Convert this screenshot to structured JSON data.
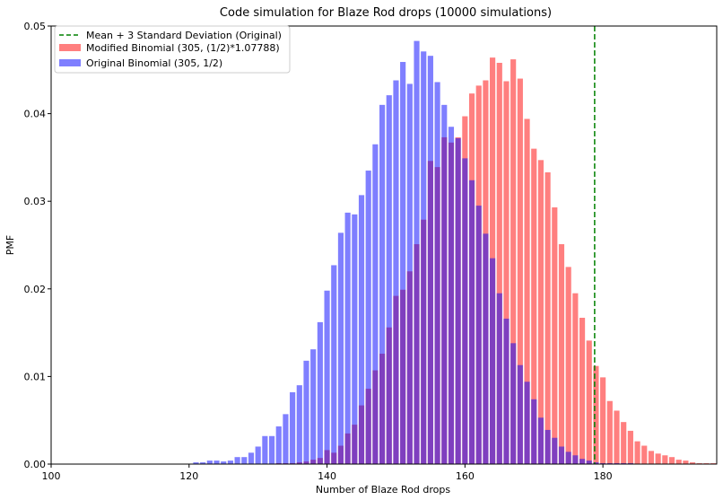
{
  "chart_data": {
    "type": "bar",
    "title": "Code simulation for Blaze Rod drops (10000 simulations)",
    "xlabel": "Number of Blaze Rod drops",
    "ylabel": "PMF",
    "xlim": [
      100,
      196.5
    ],
    "ylim": [
      0,
      0.05
    ],
    "xticks": [
      100,
      120,
      140,
      160,
      180
    ],
    "yticks": [
      0.0,
      0.01,
      0.02,
      0.03,
      0.04,
      0.05
    ],
    "xtick_labels": [
      "100",
      "120",
      "140",
      "160",
      "180"
    ],
    "ytick_labels": [
      "0.00",
      "0.01",
      "0.02",
      "0.03",
      "0.04",
      "0.05"
    ],
    "grid": false,
    "legend_position": "top-left",
    "vline": {
      "name": "Mean + 3 Standard Deviation (Original)",
      "x": 178.8,
      "color": "#008000",
      "style": "dashed"
    },
    "series": [
      {
        "name": "Modified Binomial (305, (1/2)*1.07788)",
        "color": "#ff0000",
        "opacity": 0.5,
        "x": [
          133,
          134,
          135,
          136,
          137,
          138,
          139,
          140,
          141,
          142,
          143,
          144,
          145,
          146,
          147,
          148,
          149,
          150,
          151,
          152,
          153,
          154,
          155,
          156,
          157,
          158,
          159,
          160,
          161,
          162,
          163,
          164,
          165,
          166,
          167,
          168,
          169,
          170,
          171,
          172,
          173,
          174,
          175,
          176,
          177,
          178,
          179,
          180,
          181,
          182,
          183,
          184,
          185,
          186,
          187,
          188,
          189,
          190,
          191,
          192,
          193,
          194,
          195,
          196
        ],
        "values": [
          0.0001,
          0.0001,
          0.0001,
          0.0002,
          0.0003,
          0.0005,
          0.0007,
          0.0016,
          0.0013,
          0.0021,
          0.0035,
          0.0045,
          0.0067,
          0.0086,
          0.0107,
          0.0126,
          0.0156,
          0.0192,
          0.0199,
          0.022,
          0.0251,
          0.0279,
          0.0346,
          0.0339,
          0.0373,
          0.0367,
          0.0373,
          0.0397,
          0.0423,
          0.0432,
          0.0438,
          0.0464,
          0.0458,
          0.0437,
          0.0462,
          0.044,
          0.0394,
          0.036,
          0.0347,
          0.0333,
          0.0293,
          0.0251,
          0.0225,
          0.0195,
          0.0167,
          0.0141,
          0.0112,
          0.0099,
          0.0072,
          0.0061,
          0.0048,
          0.0038,
          0.0026,
          0.0021,
          0.0015,
          0.0012,
          0.001,
          0.0008,
          0.0005,
          0.0004,
          0.0002,
          0.0001,
          0.0001,
          0.0001
        ]
      },
      {
        "name": "Original Binomial (305, 1/2)",
        "color": "#0000ff",
        "opacity": 0.5,
        "x": [
          121,
          122,
          123,
          124,
          125,
          126,
          127,
          128,
          129,
          130,
          131,
          132,
          133,
          134,
          135,
          136,
          137,
          138,
          139,
          140,
          141,
          142,
          143,
          144,
          145,
          146,
          147,
          148,
          149,
          150,
          151,
          152,
          153,
          154,
          155,
          156,
          157,
          158,
          159,
          160,
          161,
          162,
          163,
          164,
          165,
          166,
          167,
          168,
          169,
          170,
          171,
          172,
          173,
          174,
          175,
          176,
          177,
          178,
          179,
          180,
          181,
          182,
          183,
          184
        ],
        "values": [
          0.0002,
          0.0002,
          0.0004,
          0.0004,
          0.0003,
          0.0004,
          0.0008,
          0.0008,
          0.0013,
          0.002,
          0.0032,
          0.0032,
          0.0043,
          0.0057,
          0.0082,
          0.009,
          0.0118,
          0.0131,
          0.0162,
          0.0198,
          0.0227,
          0.0264,
          0.0287,
          0.0285,
          0.0307,
          0.0335,
          0.0365,
          0.041,
          0.0421,
          0.0438,
          0.0459,
          0.0434,
          0.0483,
          0.0471,
          0.0466,
          0.0436,
          0.041,
          0.0385,
          0.0372,
          0.0349,
          0.0324,
          0.0295,
          0.0263,
          0.0235,
          0.0195,
          0.0166,
          0.0138,
          0.0113,
          0.0094,
          0.0074,
          0.0053,
          0.0039,
          0.003,
          0.002,
          0.0014,
          0.001,
          0.0006,
          0.0004,
          0.0002,
          0.0001,
          0.0001,
          0.0001,
          0.0001,
          0.0001
        ]
      }
    ]
  }
}
